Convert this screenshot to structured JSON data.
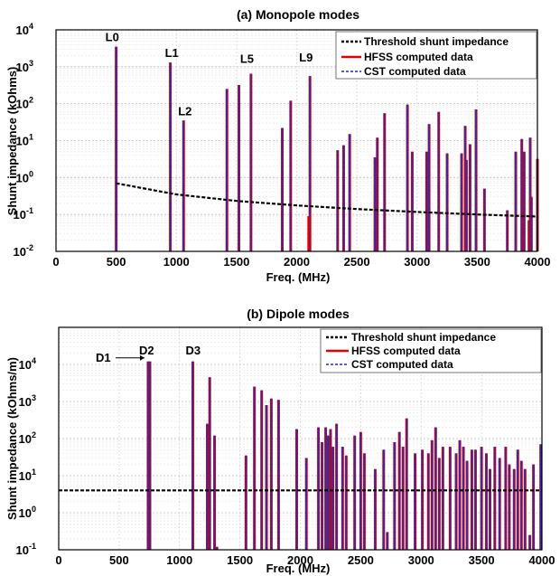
{
  "chart_data": [
    {
      "type": "bar",
      "title": "(a) Monopole modes",
      "xlabel": "Freq. (MHz)",
      "ylabel": "Shunt impedance (kOhms)",
      "xlim": [
        0,
        4000
      ],
      "ylim_log10": [
        -2,
        4
      ],
      "log_y": true,
      "grid": true,
      "legend_position": "top-right",
      "legend": [
        "Threshold shunt impedance",
        "HFSS computed data",
        "CST computed data"
      ],
      "x_ticks": [
        "0",
        "500",
        "1000",
        "1500",
        "2000",
        "2500",
        "3000",
        "3500",
        "4000"
      ],
      "y_tick_exponents": [
        "-2",
        "-1",
        "0",
        "1",
        "2",
        "3",
        "4"
      ],
      "y_tick_base": "10",
      "series": [
        {
          "name": "HFSS computed data",
          "color": "#e00000"
        },
        {
          "name": "CST computed data",
          "color": "#1f2fb8"
        },
        {
          "name": "Threshold shunt impedance",
          "color": "#000000"
        }
      ],
      "modes": [
        {
          "f": 500,
          "r": 3500
        },
        {
          "f": 950,
          "r": 1300
        },
        {
          "f": 1060,
          "r": 35
        },
        {
          "f": 1420,
          "r": 250
        },
        {
          "f": 1520,
          "r": 320
        },
        {
          "f": 1620,
          "r": 650
        },
        {
          "f": 1880,
          "r": 22
        },
        {
          "f": 1950,
          "r": 120
        },
        {
          "f": 2110,
          "r": 560
        },
        {
          "f": 2100,
          "r": 0.09,
          "hfss_only": true
        },
        {
          "f": 2340,
          "r": 5.5
        },
        {
          "f": 2390,
          "r": 7.5
        },
        {
          "f": 2440,
          "r": 15
        },
        {
          "f": 2650,
          "r": 3.5
        },
        {
          "f": 2670,
          "r": 12
        },
        {
          "f": 2730,
          "r": 55
        },
        {
          "f": 2920,
          "r": 95
        },
        {
          "f": 2960,
          "r": 5
        },
        {
          "f": 3080,
          "r": 5
        },
        {
          "f": 3100,
          "r": 28
        },
        {
          "f": 3180,
          "r": 60
        },
        {
          "f": 3250,
          "r": 4.5
        },
        {
          "f": 3370,
          "r": 4.5
        },
        {
          "f": 3400,
          "r": 25
        },
        {
          "f": 3410,
          "r": 3
        },
        {
          "f": 3440,
          "r": 8
        },
        {
          "f": 3490,
          "r": 70
        },
        {
          "f": 3560,
          "r": 0.5
        },
        {
          "f": 3750,
          "r": 0.13
        },
        {
          "f": 3820,
          "r": 5
        },
        {
          "f": 3870,
          "r": 11
        },
        {
          "f": 3890,
          "r": 5
        },
        {
          "f": 3930,
          "r": 0.07
        },
        {
          "f": 3940,
          "r": 12
        },
        {
          "f": 3950,
          "r": 0.3
        },
        {
          "f": 4000,
          "r": 3.2
        }
      ],
      "threshold": {
        "x": [
          500,
          1000,
          1500,
          2000,
          2500,
          3000,
          3500,
          4000
        ],
        "y": [
          0.7,
          0.35,
          0.233,
          0.175,
          0.14,
          0.117,
          0.1,
          0.0875
        ]
      },
      "annotations": [
        {
          "text": "L0",
          "f": 500,
          "r": 3500
        },
        {
          "text": "L1",
          "f": 950,
          "r": 1300
        },
        {
          "text": "L2",
          "f": 1060,
          "r": 35
        },
        {
          "text": "L5",
          "f": 1620,
          "r": 650
        },
        {
          "text": "L9",
          "f": 2110,
          "r": 560
        }
      ]
    },
    {
      "type": "bar",
      "title": "(b) Dipole modes",
      "xlabel": "Freq. (MHz)",
      "ylabel": "Shunt impedance (kOhms/m)",
      "xlim": [
        0,
        4000
      ],
      "ylim_log10": [
        -1,
        5
      ],
      "log_y": true,
      "grid": true,
      "legend_position": "top-right",
      "legend": [
        "Threshold shunt impedance",
        "HFSS computed data",
        "CST computed data"
      ],
      "x_ticks": [
        "0",
        "500",
        "1000",
        "1500",
        "2000",
        "2500",
        "3000",
        "3500",
        "4000"
      ],
      "y_tick_exponents": [
        "-1",
        "0",
        "1",
        "2",
        "3",
        "4"
      ],
      "y_tick_base": "10",
      "series": [
        {
          "name": "HFSS computed data",
          "color": "#e00000"
        },
        {
          "name": "CST computed data",
          "color": "#1f2fb8"
        },
        {
          "name": "Threshold shunt impedance",
          "color": "#000000"
        }
      ],
      "modes": [
        {
          "f": 740,
          "r": 12000
        },
        {
          "f": 755,
          "r": 12000
        },
        {
          "f": 1110,
          "r": 12000
        },
        {
          "f": 1250,
          "r": 4500
        },
        {
          "f": 1230,
          "r": 250
        },
        {
          "f": 1290,
          "r": 120
        },
        {
          "f": 1310,
          "r": 0.12
        },
        {
          "f": 1550,
          "r": 35
        },
        {
          "f": 1620,
          "r": 2500
        },
        {
          "f": 1680,
          "r": 2000
        },
        {
          "f": 1720,
          "r": 800
        },
        {
          "f": 1760,
          "r": 1200
        },
        {
          "f": 1820,
          "r": 1100
        },
        {
          "f": 1970,
          "r": 180
        },
        {
          "f": 2050,
          "r": 30
        },
        {
          "f": 2150,
          "r": 200
        },
        {
          "f": 2180,
          "r": 80
        },
        {
          "f": 2210,
          "r": 200
        },
        {
          "f": 2230,
          "r": 120
        },
        {
          "f": 2250,
          "r": 180
        },
        {
          "f": 2270,
          "r": 60
        },
        {
          "f": 2300,
          "r": 250
        },
        {
          "f": 2350,
          "r": 60
        },
        {
          "f": 2380,
          "r": 35
        },
        {
          "f": 2450,
          "r": 120
        },
        {
          "f": 2500,
          "r": 150
        },
        {
          "f": 2530,
          "r": 40
        },
        {
          "f": 2620,
          "r": 15
        },
        {
          "f": 2690,
          "r": 50
        },
        {
          "f": 2720,
          "r": 0.3
        },
        {
          "f": 2780,
          "r": 80
        },
        {
          "f": 2820,
          "r": 150
        },
        {
          "f": 2850,
          "r": 60
        },
        {
          "f": 2880,
          "r": 350
        },
        {
          "f": 2950,
          "r": 40
        },
        {
          "f": 3010,
          "r": 50
        },
        {
          "f": 3060,
          "r": 40
        },
        {
          "f": 3090,
          "r": 90
        },
        {
          "f": 3120,
          "r": 200
        },
        {
          "f": 3150,
          "r": 30
        },
        {
          "f": 3180,
          "r": 60
        },
        {
          "f": 3240,
          "r": 60
        },
        {
          "f": 3290,
          "r": 40
        },
        {
          "f": 3320,
          "r": 90
        },
        {
          "f": 3350,
          "r": 60
        },
        {
          "f": 3380,
          "r": 25
        },
        {
          "f": 3420,
          "r": 50
        },
        {
          "f": 3450,
          "r": 50
        },
        {
          "f": 3500,
          "r": 60
        },
        {
          "f": 3540,
          "r": 40
        },
        {
          "f": 3570,
          "r": 15
        },
        {
          "f": 3610,
          "r": 60
        },
        {
          "f": 3650,
          "r": 30
        },
        {
          "f": 3700,
          "r": 60
        },
        {
          "f": 3730,
          "r": 20
        },
        {
          "f": 3770,
          "r": 15
        },
        {
          "f": 3800,
          "r": 50
        },
        {
          "f": 3830,
          "r": 25
        },
        {
          "f": 3860,
          "r": 15
        },
        {
          "f": 3900,
          "r": 0.25
        },
        {
          "f": 3930,
          "r": 20
        },
        {
          "f": 3990,
          "r": 70
        }
      ],
      "threshold": {
        "x": [
          0,
          4000
        ],
        "y": [
          4,
          4
        ]
      },
      "annotations": [
        {
          "text": "D1",
          "f": 740,
          "r": 12000,
          "arrow": true
        },
        {
          "text": "D2",
          "f": 755,
          "r": 12000
        },
        {
          "text": "D3",
          "f": 1110,
          "r": 12000
        }
      ]
    }
  ]
}
